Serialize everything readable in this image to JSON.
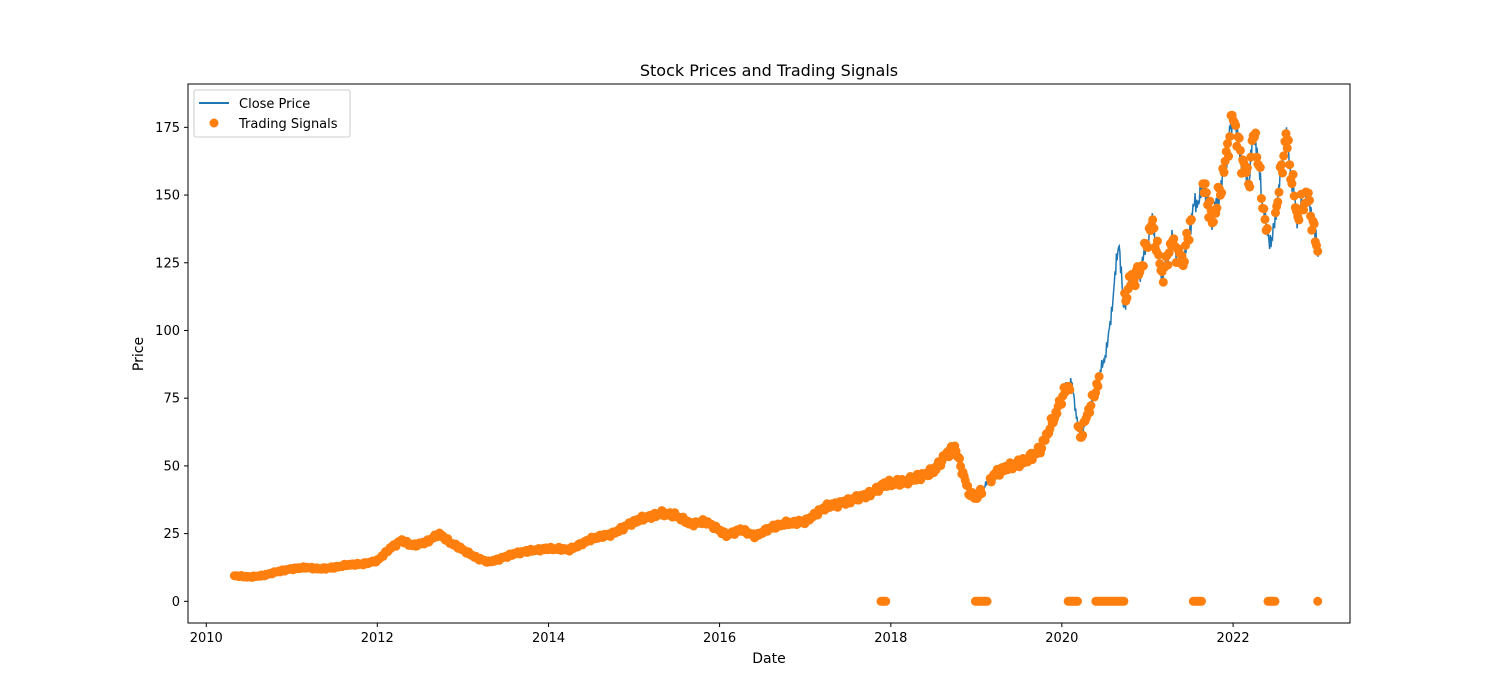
{
  "chart_data": {
    "type": "line",
    "title": "Stock Prices and Trading Signals",
    "xlabel": "Date",
    "ylabel": "Price",
    "xlim": [
      "2009-10-15",
      "2023-05-15"
    ],
    "ylim": [
      -8,
      191
    ],
    "x_ticks": [
      "2010",
      "2012",
      "2014",
      "2016",
      "2018",
      "2020",
      "2022"
    ],
    "y_ticks": [
      0,
      25,
      50,
      75,
      100,
      125,
      150,
      175
    ],
    "grid": false,
    "legend": "top-left",
    "series": [
      {
        "name": "Close Price",
        "kind": "line",
        "color": "#1f77b4",
        "points": [
          [
            "2010-05-01",
            9.5
          ],
          [
            "2010-07-01",
            9.0
          ],
          [
            "2010-09-01",
            9.5
          ],
          [
            "2010-11-01",
            11.0
          ],
          [
            "2011-01-01",
            12.0
          ],
          [
            "2011-03-01",
            12.5
          ],
          [
            "2011-05-01",
            12.0
          ],
          [
            "2011-07-01",
            12.5
          ],
          [
            "2011-09-01",
            13.5
          ],
          [
            "2011-11-01",
            13.8
          ],
          [
            "2012-01-01",
            15.0
          ],
          [
            "2012-03-01",
            20.0
          ],
          [
            "2012-04-15",
            22.5
          ],
          [
            "2012-06-01",
            20.5
          ],
          [
            "2012-08-01",
            22.0
          ],
          [
            "2012-09-20",
            25.0
          ],
          [
            "2012-11-01",
            22.0
          ],
          [
            "2013-01-01",
            19.0
          ],
          [
            "2013-03-01",
            16.0
          ],
          [
            "2013-04-20",
            14.5
          ],
          [
            "2013-06-01",
            15.5
          ],
          [
            "2013-08-01",
            17.5
          ],
          [
            "2013-10-01",
            18.5
          ],
          [
            "2014-01-01",
            19.5
          ],
          [
            "2014-04-01",
            19.0
          ],
          [
            "2014-07-01",
            23.0
          ],
          [
            "2014-10-01",
            25.0
          ],
          [
            "2014-12-01",
            28.0
          ],
          [
            "2015-02-01",
            30.5
          ],
          [
            "2015-05-01",
            32.5
          ],
          [
            "2015-07-01",
            31.5
          ],
          [
            "2015-09-01",
            28.5
          ],
          [
            "2015-11-01",
            29.5
          ],
          [
            "2016-02-01",
            24.5
          ],
          [
            "2016-04-01",
            26.5
          ],
          [
            "2016-06-01",
            24.0
          ],
          [
            "2016-08-01",
            27.0
          ],
          [
            "2016-10-01",
            28.5
          ],
          [
            "2017-01-01",
            29.5
          ],
          [
            "2017-04-01",
            35.0
          ],
          [
            "2017-07-01",
            37.0
          ],
          [
            "2017-10-01",
            39.5
          ],
          [
            "2017-12-01",
            43.0
          ],
          [
            "2018-03-01",
            44.0
          ],
          [
            "2018-05-01",
            46.0
          ],
          [
            "2018-07-01",
            48.0
          ],
          [
            "2018-09-01",
            55.0
          ],
          [
            "2018-10-01",
            57.0
          ],
          [
            "2018-12-01",
            40.0
          ],
          [
            "2019-01-01",
            38.0
          ],
          [
            "2019-02-01",
            42.0
          ],
          [
            "2019-04-01",
            48.0
          ],
          [
            "2019-06-01",
            50.0
          ],
          [
            "2019-08-01",
            52.0
          ],
          [
            "2019-10-01",
            56.0
          ],
          [
            "2019-12-01",
            68.0
          ],
          [
            "2020-01-15",
            78.0
          ],
          [
            "2020-02-10",
            81.0
          ],
          [
            "2020-03-20",
            60.0
          ],
          [
            "2020-04-15",
            68.0
          ],
          [
            "2020-06-01",
            80.0
          ],
          [
            "2020-07-15",
            95.0
          ],
          [
            "2020-08-10",
            115.0
          ],
          [
            "2020-09-01",
            134.0
          ],
          [
            "2020-09-20",
            108.0
          ],
          [
            "2020-10-15",
            118.0
          ],
          [
            "2020-12-01",
            122.0
          ],
          [
            "2021-01-20",
            140.0
          ],
          [
            "2021-03-05",
            120.0
          ],
          [
            "2021-04-15",
            133.0
          ],
          [
            "2021-06-01",
            125.0
          ],
          [
            "2021-07-15",
            145.0
          ],
          [
            "2021-09-01",
            153.0
          ],
          [
            "2021-10-05",
            140.0
          ],
          [
            "2021-11-15",
            155.0
          ],
          [
            "2022-01-01",
            180.0
          ],
          [
            "2022-02-01",
            165.0
          ],
          [
            "2022-03-10",
            155.0
          ],
          [
            "2022-04-01",
            175.0
          ],
          [
            "2022-05-20",
            138.0
          ],
          [
            "2022-06-15",
            132.0
          ],
          [
            "2022-07-15",
            152.0
          ],
          [
            "2022-08-15",
            172.0
          ],
          [
            "2022-10-01",
            142.0
          ],
          [
            "2022-11-15",
            150.0
          ],
          [
            "2022-12-30",
            128.0
          ]
        ]
      },
      {
        "name": "Trading Signals",
        "kind": "scatter",
        "color": "#ff7f0e",
        "signal_ranges_on_price": [
          [
            "2010-05-01",
            "2019-01-25"
          ],
          [
            "2019-03-01",
            "2020-02-05"
          ],
          [
            "2020-03-10",
            "2020-06-10"
          ],
          [
            "2020-09-25",
            "2021-07-10"
          ],
          [
            "2021-08-25",
            "2022-05-30"
          ],
          [
            "2022-07-01",
            "2022-12-31"
          ]
        ],
        "zero_signal_ranges": [
          [
            "2017-11-20",
            "2017-12-10"
          ],
          [
            "2018-12-28",
            "2019-02-20"
          ],
          [
            "2020-01-28",
            "2020-03-10"
          ],
          [
            "2020-05-25",
            "2020-09-25"
          ],
          [
            "2021-07-15",
            "2021-08-20"
          ],
          [
            "2022-05-30",
            "2022-06-30"
          ],
          [
            "2022-12-28",
            "2022-12-31"
          ]
        ]
      }
    ]
  }
}
